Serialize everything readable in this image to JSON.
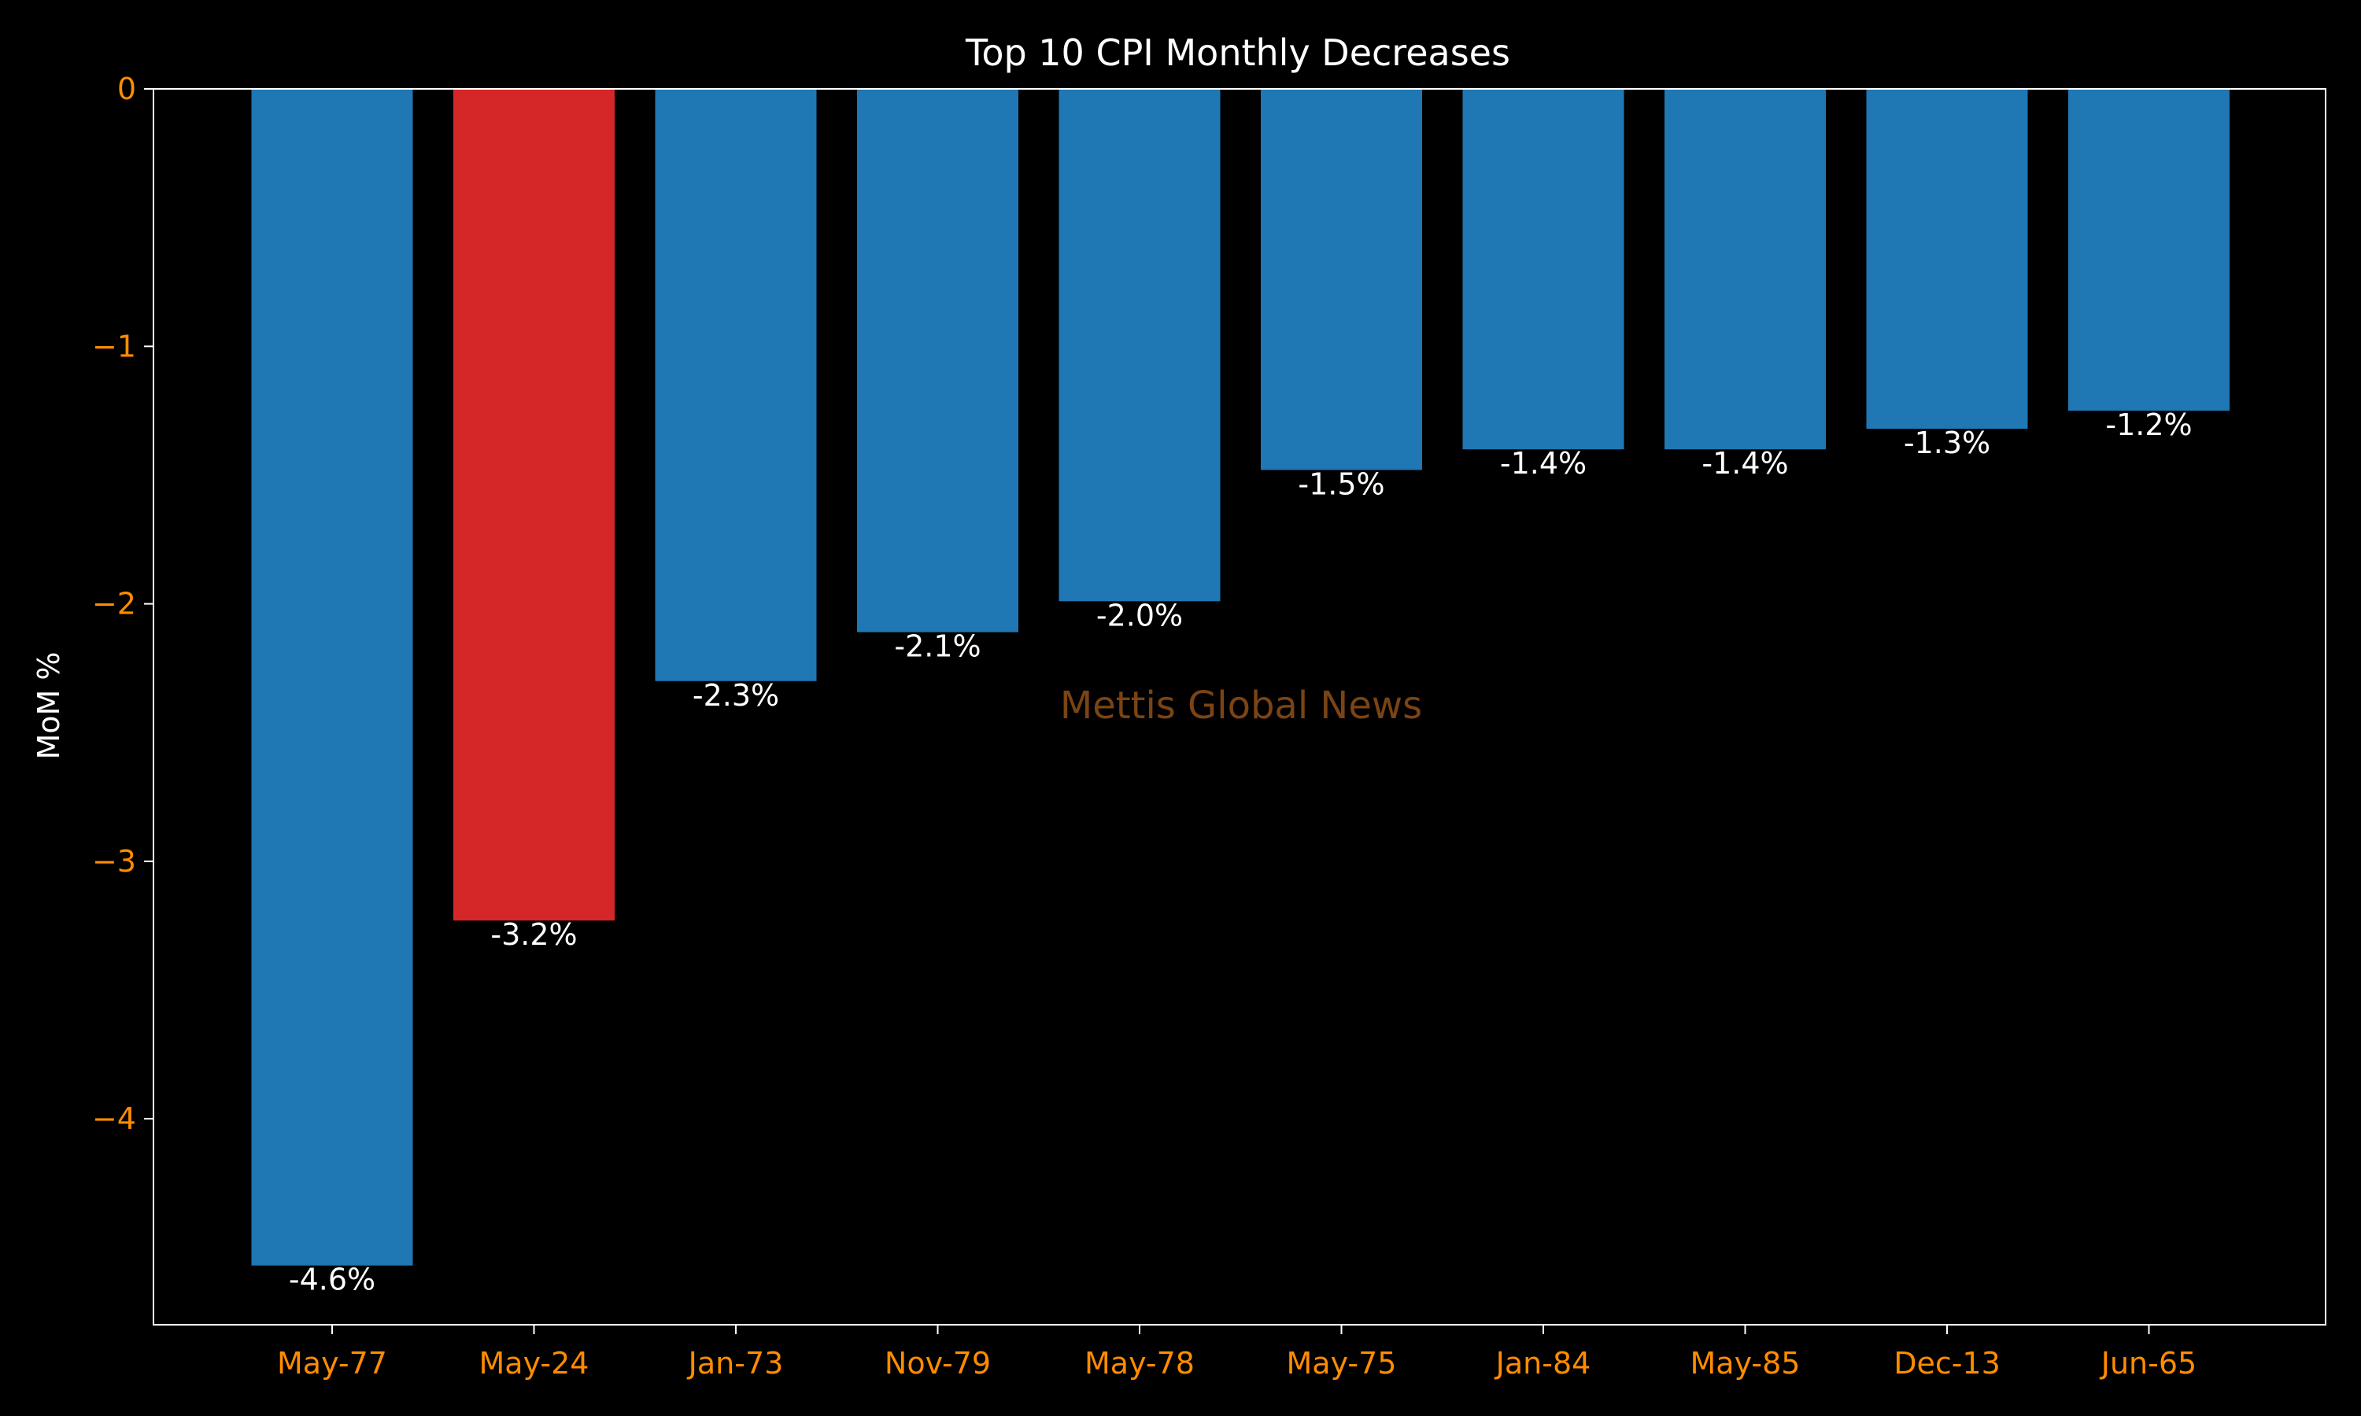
{
  "chart_data": {
    "type": "bar",
    "title": "Top 10 CPI Monthly Decreases",
    "xlabel": "",
    "ylabel": "MoM %",
    "categories": [
      "May-77",
      "May-24",
      "Jan-73",
      "Nov-79",
      "May-78",
      "May-75",
      "Jan-84",
      "May-85",
      "Dec-13",
      "Jun-65"
    ],
    "values": [
      -4.57,
      -3.23,
      -2.3,
      -2.11,
      -1.99,
      -1.48,
      -1.4,
      -1.4,
      -1.32,
      -1.25
    ],
    "value_labels": [
      "-4.6%",
      "-3.2%",
      "-2.3%",
      "-2.1%",
      "-2.0%",
      "-1.5%",
      "-1.4%",
      "-1.4%",
      "-1.3%",
      "-1.2%"
    ],
    "bar_colors": [
      "#1f77b4",
      "#d62728",
      "#1f77b4",
      "#1f77b4",
      "#1f77b4",
      "#1f77b4",
      "#1f77b4",
      "#1f77b4",
      "#1f77b4",
      "#1f77b4"
    ],
    "highlight_category": "May-24",
    "ylim": [
      -4.8,
      0
    ],
    "yticks": [
      0,
      -1,
      -2,
      -3,
      -4
    ],
    "ytick_labels": [
      "0",
      "−1",
      "−2",
      "−3",
      "−4"
    ],
    "grid": false,
    "watermark": "Mettis Global News"
  },
  "colors": {
    "background": "#000000",
    "axis": "#ffffff",
    "tick_label": "#ff8c00",
    "text": "#ffffff",
    "bar_default": "#1f77b4",
    "bar_highlight": "#d62728",
    "watermark": "#7a4414"
  }
}
